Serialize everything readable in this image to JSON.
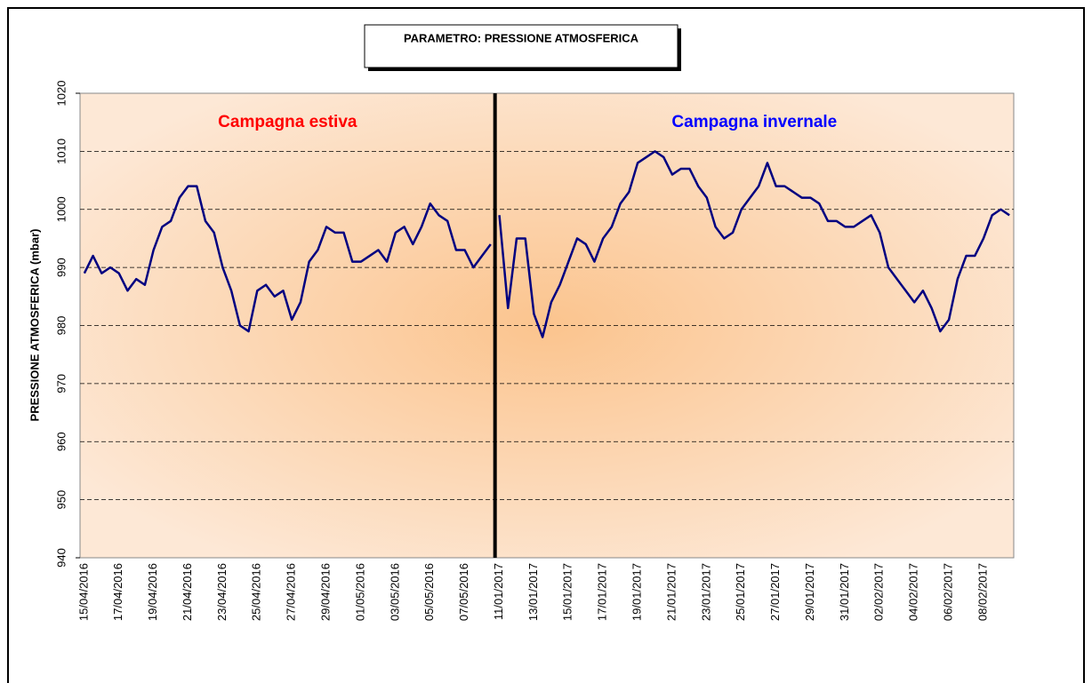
{
  "chart_data": {
    "type": "line",
    "title": "PARAMETRO: PRESSIONE ATMOSFERICA",
    "y_label": "PRESSIONE ATMOSFERICA (mbar)",
    "ylim": [
      940,
      1020
    ],
    "yticks": [
      940,
      950,
      960,
      970,
      980,
      990,
      1000,
      1010,
      1020
    ],
    "grid": true,
    "categories": [
      "15/04/2016",
      null,
      null,
      null,
      "17/04/2016",
      null,
      null,
      null,
      "19/04/2016",
      null,
      null,
      null,
      "21/04/2016",
      null,
      null,
      null,
      "23/04/2016",
      null,
      null,
      null,
      "25/04/2016",
      null,
      null,
      null,
      "27/04/2016",
      null,
      null,
      null,
      "29/04/2016",
      null,
      null,
      null,
      "01/05/2016",
      null,
      null,
      null,
      "03/05/2016",
      null,
      null,
      null,
      "05/05/2016",
      null,
      null,
      null,
      "07/05/2016",
      null,
      null,
      null,
      "11/01/2017",
      null,
      null,
      null,
      "13/01/2017",
      null,
      null,
      null,
      "15/01/2017",
      null,
      null,
      null,
      "17/01/2017",
      null,
      null,
      null,
      "19/01/2017",
      null,
      null,
      null,
      "21/01/2017",
      null,
      null,
      null,
      "23/01/2017",
      null,
      null,
      null,
      "25/01/2017",
      null,
      null,
      null,
      "27/01/2017",
      null,
      null,
      null,
      "29/01/2017",
      null,
      null,
      null,
      "31/01/2017",
      null,
      null,
      null,
      "02/02/2017",
      null,
      null,
      null,
      "04/02/2017",
      null,
      null,
      null,
      "06/02/2017",
      null,
      null,
      null,
      "08/02/2017",
      null,
      null,
      null
    ],
    "series": [
      {
        "name": "Campagna estiva",
        "color": "#000080",
        "label_color": "#ff0000",
        "values": [
          989,
          992,
          989,
          990,
          989,
          986,
          988,
          987,
          993,
          997,
          998,
          1002,
          1004,
          1004,
          998,
          996,
          990,
          986,
          980,
          979,
          986,
          987,
          985,
          986,
          981,
          984,
          991,
          993,
          997,
          996,
          996,
          991,
          991,
          992,
          993,
          991,
          996,
          997,
          994,
          997,
          1001,
          999,
          998,
          993,
          993,
          990,
          992,
          994,
          null,
          null,
          null,
          null,
          null,
          null,
          null,
          null,
          null,
          null,
          null,
          null,
          null,
          null,
          null,
          null,
          null,
          null,
          null,
          null,
          null,
          null,
          null,
          null,
          null,
          null,
          null,
          null,
          null,
          null,
          null,
          null,
          null,
          null,
          null,
          null,
          null,
          null,
          null,
          null,
          null,
          null,
          null,
          null,
          null,
          null,
          null,
          null,
          null,
          null,
          null,
          null,
          null,
          null,
          null,
          null,
          null,
          null,
          null,
          null
        ]
      },
      {
        "name": "Campagna invernale",
        "color": "#000080",
        "label_color": "#0000ff",
        "values": [
          null,
          null,
          null,
          null,
          null,
          null,
          null,
          null,
          null,
          null,
          null,
          null,
          null,
          null,
          null,
          null,
          null,
          null,
          null,
          null,
          null,
          null,
          null,
          null,
          null,
          null,
          null,
          null,
          null,
          null,
          null,
          null,
          null,
          null,
          null,
          null,
          null,
          null,
          null,
          null,
          null,
          null,
          null,
          null,
          null,
          null,
          null,
          null,
          999,
          983,
          995,
          995,
          982,
          978,
          984,
          987,
          991,
          995,
          994,
          991,
          995,
          997,
          1001,
          1003,
          1008,
          1009,
          1010,
          1009,
          1006,
          1007,
          1007,
          1004,
          1002,
          997,
          995,
          996,
          1000,
          1002,
          1004,
          1008,
          1004,
          1004,
          1003,
          1002,
          1002,
          1001,
          998,
          998,
          997,
          997,
          998,
          999,
          996,
          990,
          988,
          986,
          984,
          986,
          983,
          979,
          981,
          988,
          992,
          992,
          995,
          999,
          1000,
          999
        ]
      }
    ]
  }
}
